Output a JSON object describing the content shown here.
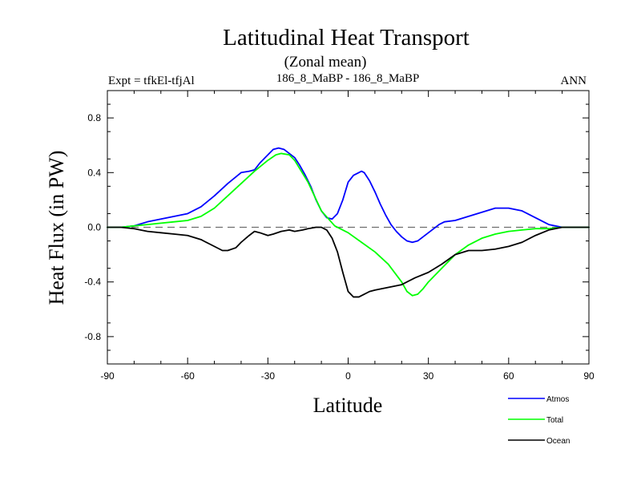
{
  "chart_data": {
    "type": "line",
    "title": "Latitudinal Heat Transport",
    "subtitle": "(Zonal mean)",
    "left_label": "Expt = tfkEl-tfjAl",
    "center_label": "186_8_MaBP - 186_8_MaBP",
    "right_label": "ANN",
    "xlabel": "Latitude",
    "ylabel": "Heat Flux (in PW)",
    "xlim": [
      -90,
      90
    ],
    "ylim": [
      -1.0,
      1.0
    ],
    "x_ticks": [
      -90,
      -60,
      -30,
      0,
      30,
      60,
      90
    ],
    "x_tick_labels": [
      "-90",
      "-60",
      "-30",
      "0",
      "30",
      "60",
      "90"
    ],
    "y_ticks": [
      -0.8,
      -0.4,
      0.0,
      0.4,
      0.8
    ],
    "y_tick_labels": [
      "-0.8",
      "-0.4",
      "0.0",
      "0.4",
      "0.8"
    ],
    "zero_line": true,
    "legend_position": "bottom-right",
    "series": [
      {
        "name": "Atmos",
        "color": "#0000ff",
        "x": [
          -90,
          -85,
          -80,
          -75,
          -70,
          -65,
          -60,
          -55,
          -50,
          -45,
          -40,
          -37,
          -35,
          -33,
          -30,
          -28,
          -26,
          -24,
          -22,
          -20,
          -18,
          -16,
          -14,
          -12,
          -10,
          -8,
          -6,
          -4,
          -2,
          0,
          2,
          4,
          5,
          6,
          8,
          10,
          12,
          14,
          16,
          18,
          20,
          22,
          24,
          26,
          28,
          30,
          32,
          34,
          36,
          40,
          45,
          50,
          55,
          60,
          65,
          70,
          75,
          80,
          85,
          90
        ],
        "y": [
          0.0,
          0.0,
          0.01,
          0.04,
          0.06,
          0.08,
          0.1,
          0.15,
          0.23,
          0.32,
          0.4,
          0.41,
          0.42,
          0.47,
          0.53,
          0.57,
          0.58,
          0.57,
          0.54,
          0.51,
          0.45,
          0.38,
          0.3,
          0.2,
          0.12,
          0.07,
          0.06,
          0.1,
          0.2,
          0.33,
          0.38,
          0.4,
          0.41,
          0.4,
          0.34,
          0.26,
          0.17,
          0.09,
          0.02,
          -0.03,
          -0.07,
          -0.1,
          -0.11,
          -0.1,
          -0.07,
          -0.04,
          -0.01,
          0.02,
          0.04,
          0.05,
          0.08,
          0.11,
          0.14,
          0.14,
          0.12,
          0.07,
          0.02,
          0.0,
          0.0,
          0.0
        ]
      },
      {
        "name": "Total",
        "color": "#00ff00",
        "x": [
          -90,
          -85,
          -80,
          -75,
          -70,
          -65,
          -60,
          -55,
          -50,
          -45,
          -40,
          -35,
          -30,
          -27,
          -25,
          -22,
          -20,
          -15,
          -10,
          -5,
          0,
          5,
          10,
          15,
          20,
          22,
          24,
          26,
          28,
          30,
          35,
          40,
          45,
          50,
          55,
          60,
          65,
          70,
          75,
          80,
          85,
          90
        ],
        "y": [
          0.0,
          0.0,
          0.01,
          0.02,
          0.03,
          0.04,
          0.05,
          0.08,
          0.14,
          0.23,
          0.32,
          0.41,
          0.49,
          0.53,
          0.54,
          0.53,
          0.49,
          0.33,
          0.12,
          0.01,
          -0.04,
          -0.11,
          -0.18,
          -0.27,
          -0.4,
          -0.47,
          -0.5,
          -0.49,
          -0.45,
          -0.4,
          -0.3,
          -0.2,
          -0.13,
          -0.08,
          -0.05,
          -0.03,
          -0.02,
          -0.01,
          -0.01,
          0.0,
          0.0,
          0.0
        ]
      },
      {
        "name": "Ocean",
        "color": "#000000",
        "x": [
          -90,
          -85,
          -80,
          -75,
          -70,
          -65,
          -60,
          -55,
          -50,
          -47,
          -45,
          -42,
          -40,
          -37,
          -35,
          -33,
          -30,
          -28,
          -25,
          -22,
          -20,
          -17,
          -15,
          -12,
          -10,
          -8,
          -6,
          -4,
          -2,
          0,
          2,
          4,
          6,
          8,
          10,
          15,
          20,
          25,
          30,
          35,
          40,
          45,
          50,
          55,
          60,
          65,
          70,
          75,
          80,
          85,
          90
        ],
        "y": [
          0.0,
          0.0,
          -0.01,
          -0.03,
          -0.04,
          -0.05,
          -0.06,
          -0.09,
          -0.14,
          -0.17,
          -0.17,
          -0.15,
          -0.11,
          -0.06,
          -0.03,
          -0.04,
          -0.06,
          -0.05,
          -0.03,
          -0.02,
          -0.03,
          -0.02,
          -0.01,
          0.0,
          0.0,
          -0.02,
          -0.08,
          -0.18,
          -0.33,
          -0.47,
          -0.51,
          -0.51,
          -0.49,
          -0.47,
          -0.46,
          -0.44,
          -0.42,
          -0.37,
          -0.33,
          -0.27,
          -0.2,
          -0.17,
          -0.17,
          -0.16,
          -0.14,
          -0.11,
          -0.06,
          -0.02,
          0.0,
          0.0,
          0.0
        ]
      }
    ]
  }
}
